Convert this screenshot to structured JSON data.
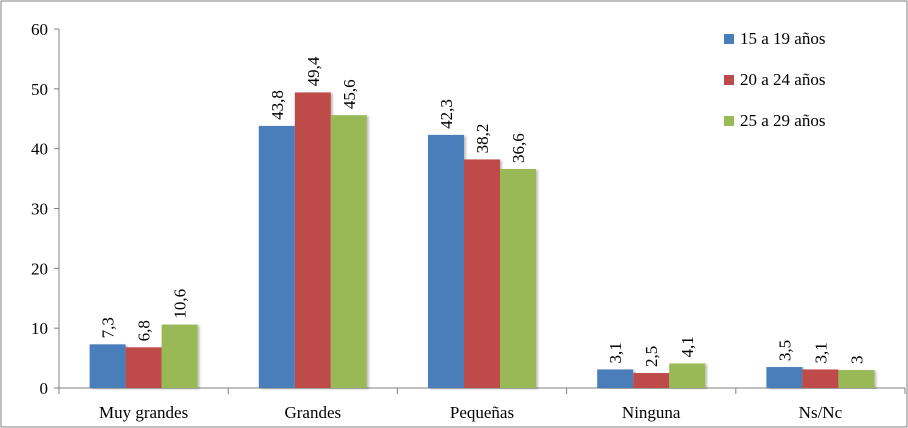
{
  "chart_data": {
    "type": "bar",
    "categories": [
      "Muy grandes",
      "Grandes",
      "Pequeñas",
      "Ninguna",
      "Ns/Nc"
    ],
    "series": [
      {
        "name": "15 a 19 años",
        "values": [
          7.3,
          43.8,
          42.3,
          3.1,
          3.5
        ],
        "labels": [
          "7,3",
          "43,8",
          "42,3",
          "3,1",
          "3,5"
        ],
        "color": "#4a7ebb"
      },
      {
        "name": "20 a 24 años",
        "values": [
          6.8,
          49.4,
          38.2,
          2.5,
          3.1
        ],
        "labels": [
          "6,8",
          "49,4",
          "38,2",
          "2,5",
          "3,1"
        ],
        "color": "#be4b48"
      },
      {
        "name": "25 a 29 años",
        "values": [
          10.6,
          45.6,
          36.6,
          4.1,
          3.0
        ],
        "labels": [
          "10,6",
          "45,6",
          "36,6",
          "4,1",
          "3"
        ],
        "color": "#98b954"
      }
    ],
    "yticks": [
      "0",
      "10",
      "20",
      "30",
      "40",
      "50",
      "60"
    ],
    "ylim": [
      0,
      60
    ],
    "grid": false,
    "legend_position": "top-right"
  }
}
